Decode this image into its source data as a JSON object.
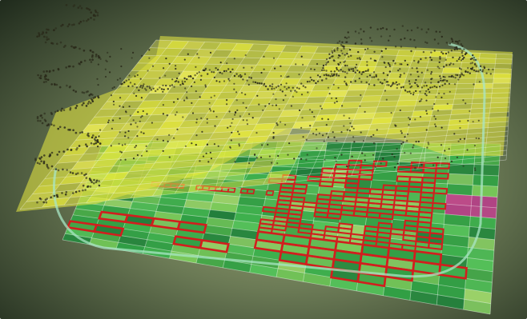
{
  "scene": {
    "colors": {
      "background_light": "#8a9a70",
      "background_dark": "#1b2619",
      "top_layer_yellow": "#e8ea3a",
      "top_layer_olive": "#c9cf48",
      "bottom_layer_green": "#34b54a",
      "bottom_layer_light_green": "#8fcf5a",
      "highlight_red": "#d21e1e",
      "highlight_magenta": "#c03d8c",
      "grid_line": "#ffffff",
      "points": "#2a2a1a",
      "boundary_curve": "#a8e6c4"
    }
  }
}
